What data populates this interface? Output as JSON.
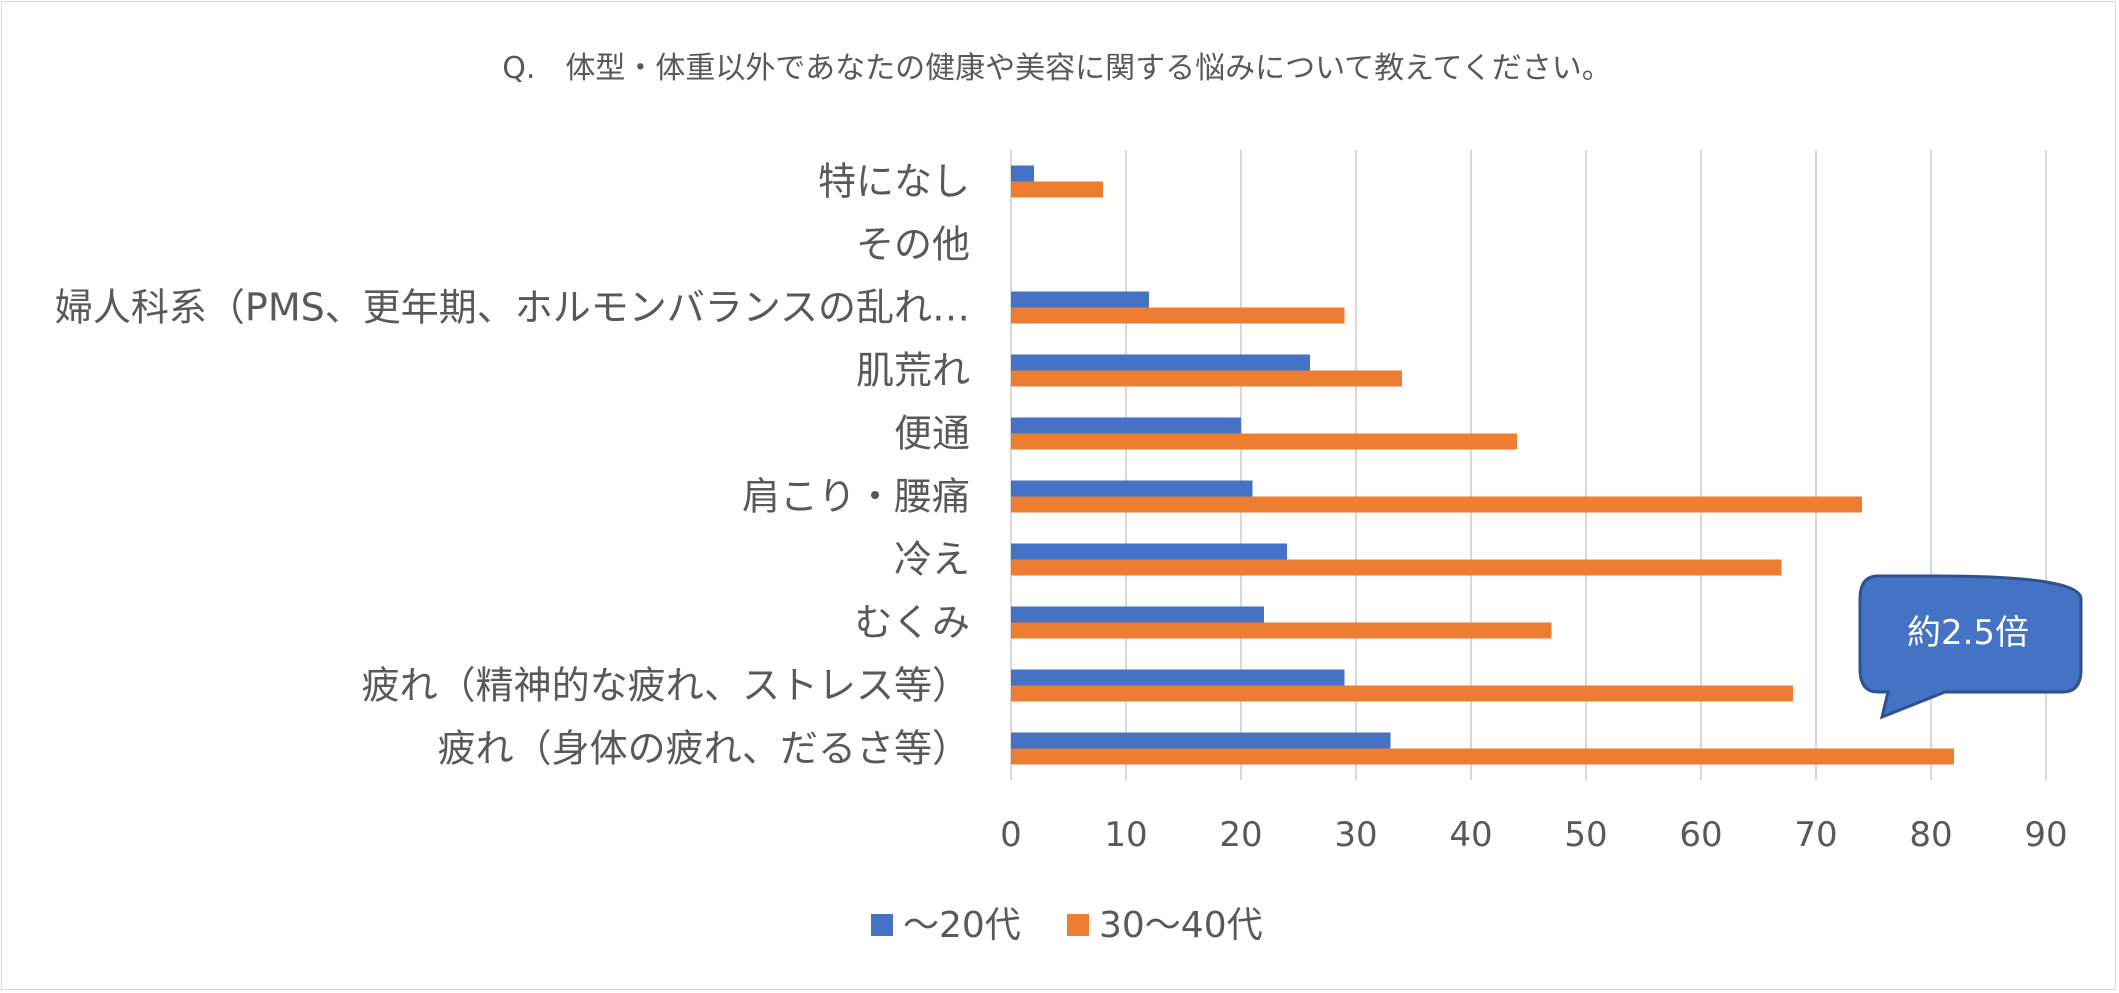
{
  "chart_data": {
    "type": "bar",
    "orientation": "horizontal",
    "title": "Q.　体型・体重以外であなたの健康や美容に関する悩みについて教えてください。",
    "categories": [
      "特になし",
      "その他",
      "婦人科系（PMS、更年期、ホルモンバランスの乱れ…",
      "肌荒れ",
      "便通",
      "肩こり・腰痛",
      "冷え",
      "むくみ",
      "疲れ（精神的な疲れ、ストレス等）",
      "疲れ（身体の疲れ、だるさ等）"
    ],
    "series": [
      {
        "name": "〜20代",
        "color": "#4472c4",
        "values": [
          2,
          0,
          12,
          26,
          20,
          21,
          24,
          22,
          29,
          33
        ]
      },
      {
        "name": "30〜40代",
        "color": "#ed7d31",
        "values": [
          8,
          0,
          29,
          34,
          44,
          74,
          67,
          47,
          68,
          82
        ]
      }
    ],
    "xlim": [
      0,
      90
    ],
    "xticks": [
      0,
      10,
      20,
      30,
      40,
      50,
      60,
      70,
      80,
      90
    ],
    "grid": true,
    "legend": "bottom",
    "annotation": {
      "text": "約2.5倍",
      "color": "#4472c4",
      "border": "#2f528f"
    }
  }
}
